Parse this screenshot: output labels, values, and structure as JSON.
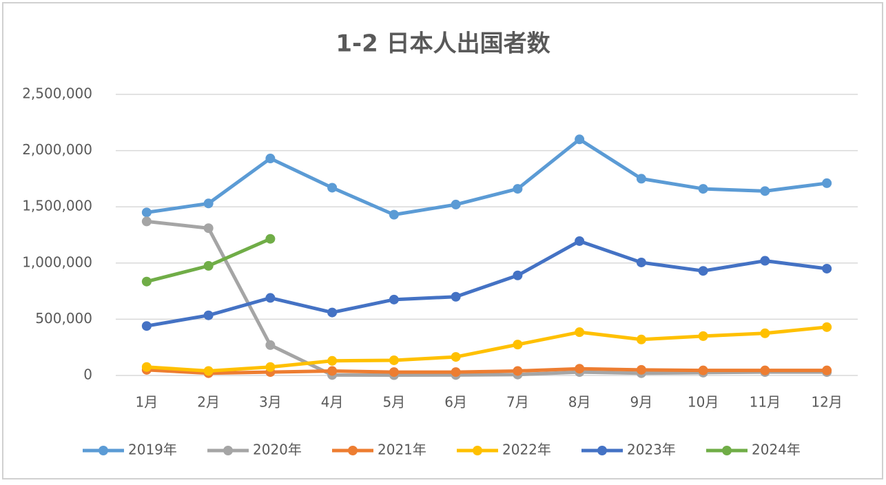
{
  "chart_data": {
    "type": "line",
    "title": "1-2 日本人出国者数",
    "categories": [
      "1月",
      "2月",
      "3月",
      "4月",
      "5月",
      "6月",
      "7月",
      "8月",
      "9月",
      "10月",
      "11月",
      "12月"
    ],
    "series": [
      {
        "name": "2019年",
        "color": "#5b9bd5",
        "values": [
          1450000,
          1530000,
          1930000,
          1670000,
          1430000,
          1520000,
          1660000,
          2100000,
          1750000,
          1660000,
          1640000,
          1710000
        ]
      },
      {
        "name": "2020年",
        "color": "#a5a5a5",
        "values": [
          1370000,
          1310000,
          270000,
          4000,
          3000,
          4000,
          8000,
          30000,
          20000,
          25000,
          30000,
          30000
        ]
      },
      {
        "name": "2021年",
        "color": "#ed7d31",
        "values": [
          50000,
          20000,
          30000,
          40000,
          30000,
          30000,
          40000,
          60000,
          50000,
          45000,
          45000,
          45000
        ]
      },
      {
        "name": "2022年",
        "color": "#ffc000",
        "values": [
          75000,
          40000,
          75000,
          130000,
          135000,
          165000,
          275000,
          385000,
          320000,
          350000,
          375000,
          430000
        ]
      },
      {
        "name": "2023年",
        "color": "#4472c4",
        "values": [
          440000,
          535000,
          690000,
          560000,
          675000,
          700000,
          890000,
          1195000,
          1005000,
          930000,
          1020000,
          950000
        ]
      },
      {
        "name": "2024年",
        "color": "#70ad47",
        "values": [
          835000,
          975000,
          1215000,
          null,
          null,
          null,
          null,
          null,
          null,
          null,
          null,
          null
        ]
      }
    ],
    "ylim": [
      0,
      2500000
    ],
    "yticks": [
      0,
      {
        "value": 500000,
        "label": "500,000"
      },
      {
        "value": 1000000,
        "label": "1,000,000"
      },
      {
        "value": 1500000,
        "label": "1,500,000"
      },
      {
        "value": 2000000,
        "label": "2,000,000"
      },
      {
        "value": 2500000,
        "label": "2,500,000"
      }
    ],
    "grid": true,
    "legend": "bottom"
  }
}
